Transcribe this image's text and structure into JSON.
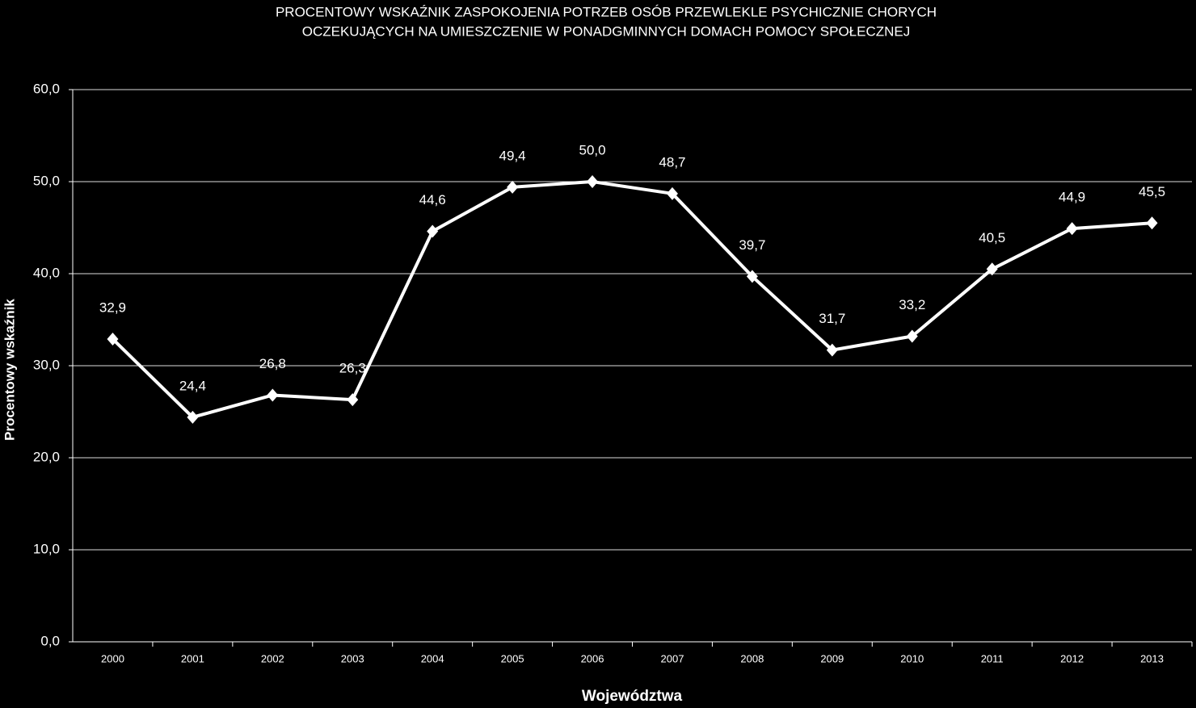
{
  "chart_data": {
    "type": "line",
    "title": [
      "PROCENTOWY WSKAŹNIK ZASPOKOJENIA POTRZEB OSÓB PRZEWLEKLE PSYCHICZNIE CHORYCH",
      "OCZEKUJĄCYCH NA UMIESZCZENIE W PONADGMINNYCH DOMACH POMOCY SPOŁECZNEJ"
    ],
    "x_label": "Województwa",
    "y_label": "Procentowy wskaźnik",
    "categories": [
      "2000",
      "2001",
      "2002",
      "2003",
      "2004",
      "2005",
      "2006",
      "2007",
      "2008",
      "2009",
      "2010",
      "2011",
      "2012",
      "2013"
    ],
    "values": [
      32.9,
      24.4,
      26.8,
      26.3,
      44.6,
      49.4,
      50.0,
      48.7,
      39.7,
      31.7,
      33.2,
      40.5,
      44.9,
      45.5
    ],
    "value_labels": [
      "32,9",
      "24,4",
      "26,8",
      "26,3",
      "44,6",
      "49,4",
      "50,0",
      "48,7",
      "39,7",
      "31,7",
      "33,2",
      "40,5",
      "44,9",
      "45,5"
    ],
    "color": "#ffffff",
    "ylim": [
      0,
      60
    ],
    "yticks": [
      {
        "value": 0,
        "label": "0,0"
      },
      {
        "value": 10,
        "label": "10,0"
      },
      {
        "value": 20,
        "label": "20,0"
      },
      {
        "value": 30,
        "label": "30,0"
      },
      {
        "value": 40,
        "label": "40,0"
      },
      {
        "value": 50,
        "label": "50,0"
      },
      {
        "value": 60,
        "label": "60,0"
      }
    ],
    "grid": true
  }
}
